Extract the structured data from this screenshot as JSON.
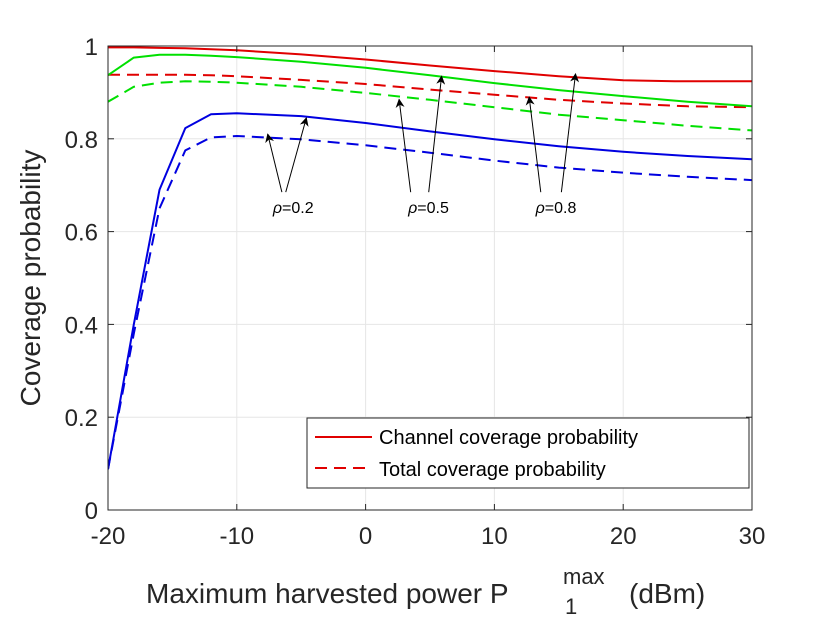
{
  "chart_data": {
    "type": "line",
    "title": "",
    "xlabel_main": "Maximum harvested power P",
    "xlabel_sub": "1",
    "xlabel_sup": "max",
    "xlabel_tail": "(dBm)",
    "ylabel": "Coverage probability",
    "xlim": [
      -20,
      30
    ],
    "ylim": [
      0,
      1
    ],
    "xticks": [
      -20,
      -10,
      0,
      10,
      20,
      30
    ],
    "yticks": [
      0,
      0.2,
      0.4,
      0.6,
      0.8,
      1
    ],
    "xtick_labels": [
      "-20",
      "-10",
      "0",
      "10",
      "20",
      "30"
    ],
    "ytick_labels": [
      "0",
      "0.2",
      "0.4",
      "0.6",
      "0.8",
      "1"
    ],
    "grid": true,
    "legend": {
      "placement": "bottom-right",
      "entries": [
        {
          "label": "Channel coverage probability",
          "style": "solid",
          "color": "#e00000"
        },
        {
          "label": "Total coverage probability",
          "style": "dashed",
          "color": "#e00000"
        }
      ]
    },
    "series": [
      {
        "name": "Channel, ρ=0.8",
        "rho": "0.8",
        "kind": "channel",
        "color": "#e00000",
        "style": "solid",
        "x": [
          -20,
          -18,
          -16,
          -14,
          -12,
          -10,
          -5,
          0,
          5,
          10,
          15,
          20,
          24,
          30
        ],
        "y": [
          0.997,
          0.997,
          0.996,
          0.995,
          0.993,
          0.991,
          0.982,
          0.971,
          0.958,
          0.946,
          0.935,
          0.926,
          0.924,
          0.924
        ]
      },
      {
        "name": "Total, ρ=0.8",
        "rho": "0.8",
        "kind": "total",
        "color": "#e00000",
        "style": "dashed",
        "x": [
          -20,
          -18,
          -16,
          -14,
          -12,
          -10,
          -5,
          0,
          5,
          10,
          15,
          20,
          25,
          30
        ],
        "y": [
          0.938,
          0.938,
          0.938,
          0.938,
          0.937,
          0.935,
          0.927,
          0.918,
          0.906,
          0.895,
          0.884,
          0.876,
          0.87,
          0.868
        ]
      },
      {
        "name": "Channel, ρ=0.5",
        "rho": "0.5",
        "kind": "channel",
        "color": "#00e000",
        "style": "solid",
        "x": [
          -20,
          -18,
          -16,
          -14,
          -12,
          -10,
          -5,
          0,
          5,
          10,
          15,
          20,
          25,
          30
        ],
        "y": [
          0.937,
          0.975,
          0.981,
          0.981,
          0.979,
          0.976,
          0.966,
          0.953,
          0.937,
          0.92,
          0.905,
          0.892,
          0.88,
          0.87
        ]
      },
      {
        "name": "Total, ρ=0.5",
        "rho": "0.5",
        "kind": "total",
        "color": "#00e000",
        "style": "dashed",
        "x": [
          -20,
          -18,
          -16,
          -14,
          -12,
          -10,
          -5,
          0,
          5,
          10,
          15,
          20,
          25,
          30
        ],
        "y": [
          0.88,
          0.912,
          0.921,
          0.924,
          0.923,
          0.921,
          0.912,
          0.899,
          0.884,
          0.868,
          0.852,
          0.84,
          0.828,
          0.818
        ]
      },
      {
        "name": "Channel, ρ=0.2",
        "rho": "0.2",
        "kind": "channel",
        "color": "#0000e0",
        "style": "solid",
        "x": [
          -20,
          -18,
          -16,
          -14,
          -12,
          -10,
          -5,
          0,
          5,
          10,
          15,
          20,
          25,
          30
        ],
        "y": [
          0.088,
          0.4,
          0.69,
          0.823,
          0.853,
          0.855,
          0.849,
          0.834,
          0.816,
          0.799,
          0.784,
          0.772,
          0.763,
          0.756
        ]
      },
      {
        "name": "Total, ρ=0.2",
        "rho": "0.2",
        "kind": "total",
        "color": "#0000e0",
        "style": "dashed",
        "x": [
          -20,
          -18,
          -16,
          -14,
          -12,
          -10,
          -5,
          0,
          5,
          10,
          15,
          20,
          25,
          30
        ],
        "y": [
          0.088,
          0.38,
          0.65,
          0.775,
          0.803,
          0.806,
          0.799,
          0.786,
          0.77,
          0.753,
          0.738,
          0.727,
          0.718,
          0.711
        ]
      }
    ],
    "annotations": [
      {
        "text": "ρ=0.2",
        "symbol": "ρ",
        "value": "=0.2",
        "label_at": [
          -7.2,
          0.64
        ],
        "arrows": [
          {
            "from": [
              -6.5,
              0.685
            ],
            "to": [
              -7.6,
              0.81
            ]
          },
          {
            "from": [
              -6.2,
              0.685
            ],
            "to": [
              -4.6,
              0.845
            ]
          }
        ]
      },
      {
        "text": "ρ=0.5",
        "symbol": "ρ",
        "value": "=0.5",
        "label_at": [
          3.3,
          0.64
        ],
        "arrows": [
          {
            "from": [
              3.5,
              0.685
            ],
            "to": [
              2.6,
              0.885
            ]
          },
          {
            "from": [
              4.9,
              0.685
            ],
            "to": [
              5.9,
              0.935
            ]
          }
        ]
      },
      {
        "text": "ρ=0.8",
        "symbol": "ρ",
        "value": "=0.8",
        "label_at": [
          13.2,
          0.64
        ],
        "arrows": [
          {
            "from": [
              13.6,
              0.685
            ],
            "to": [
              12.7,
              0.89
            ]
          },
          {
            "from": [
              15.2,
              0.685
            ],
            "to": [
              16.3,
              0.94
            ]
          }
        ]
      }
    ]
  }
}
